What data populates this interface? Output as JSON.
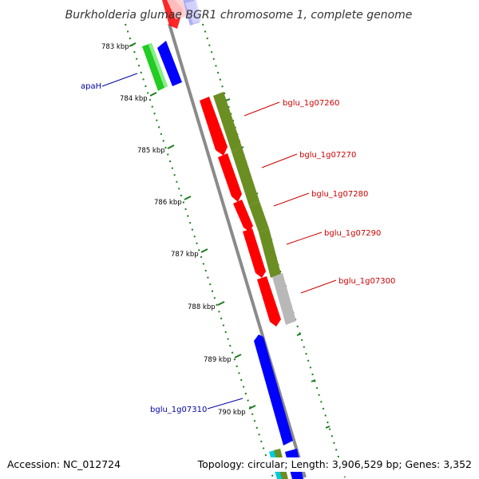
{
  "title": "Burkholderia glumae BGR1 chromosome 1, complete genome",
  "footer": {
    "accession": "Accession: NC_012724",
    "summary": "Topology: circular; Length: 3,906,529 bp; Genes: 3,352"
  },
  "colors": {
    "forward": "#ff0000",
    "reverse": "#0000ff",
    "green_gene": "#22cc22",
    "olive_feature": "#6b8e23",
    "grey_feature": "#b8b8b8",
    "backbone": "#8a8a8a",
    "tick": "#1e7a1e",
    "label_red": "#cc0000",
    "label_blue": "#0000aa"
  },
  "ticks": [
    {
      "label": "783 kbp"
    },
    {
      "label": "784 kbp"
    },
    {
      "label": "785 kbp"
    },
    {
      "label": "786 kbp"
    },
    {
      "label": "787 kbp"
    },
    {
      "label": "788 kbp"
    },
    {
      "label": "789 kbp"
    },
    {
      "label": "790 kbp"
    }
  ],
  "gene_labels": [
    {
      "text": "apaH",
      "color": "blue"
    },
    {
      "text": "bglu_1g07260",
      "color": "red"
    },
    {
      "text": "bglu_1g07270",
      "color": "red"
    },
    {
      "text": "bglu_1g07280",
      "color": "red"
    },
    {
      "text": "bglu_1g07290",
      "color": "red"
    },
    {
      "text": "bglu_1g07300",
      "color": "red"
    },
    {
      "text": "bglu_1g07310",
      "color": "blue"
    }
  ]
}
